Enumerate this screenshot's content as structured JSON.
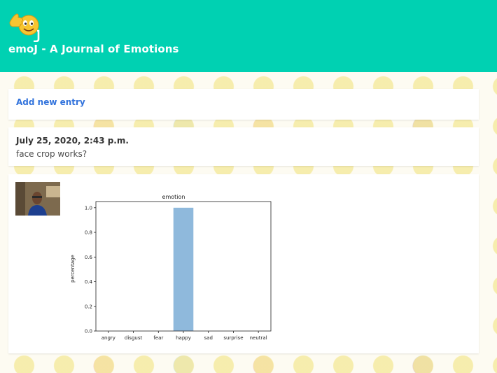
{
  "header": {
    "title": "emoJ - A Journal of Emotions",
    "logo_icon": "thumbs-up-emoji-icon",
    "background": "#00d1b2"
  },
  "add_entry": {
    "label": "Add new entry",
    "color": "#3273dc"
  },
  "entry": {
    "date": "July 25, 2020, 2:43 p.m.",
    "text": "face crop works?"
  },
  "photo": {
    "icon": "face-photo-thumbnail"
  },
  "chart_data": {
    "type": "bar",
    "title": "emotion",
    "xlabel": "",
    "ylabel": "percentage",
    "categories": [
      "angry",
      "disgust",
      "fear",
      "happy",
      "sad",
      "surprise",
      "neutral"
    ],
    "values": [
      0,
      0,
      0,
      1.0,
      0,
      0,
      0
    ],
    "ylim": [
      0,
      1.05
    ],
    "yticks": [
      "0.0",
      "0.2",
      "0.4",
      "0.6",
      "0.8",
      "1.0"
    ],
    "bar_color": "#8fb9dc",
    "grid": false
  }
}
